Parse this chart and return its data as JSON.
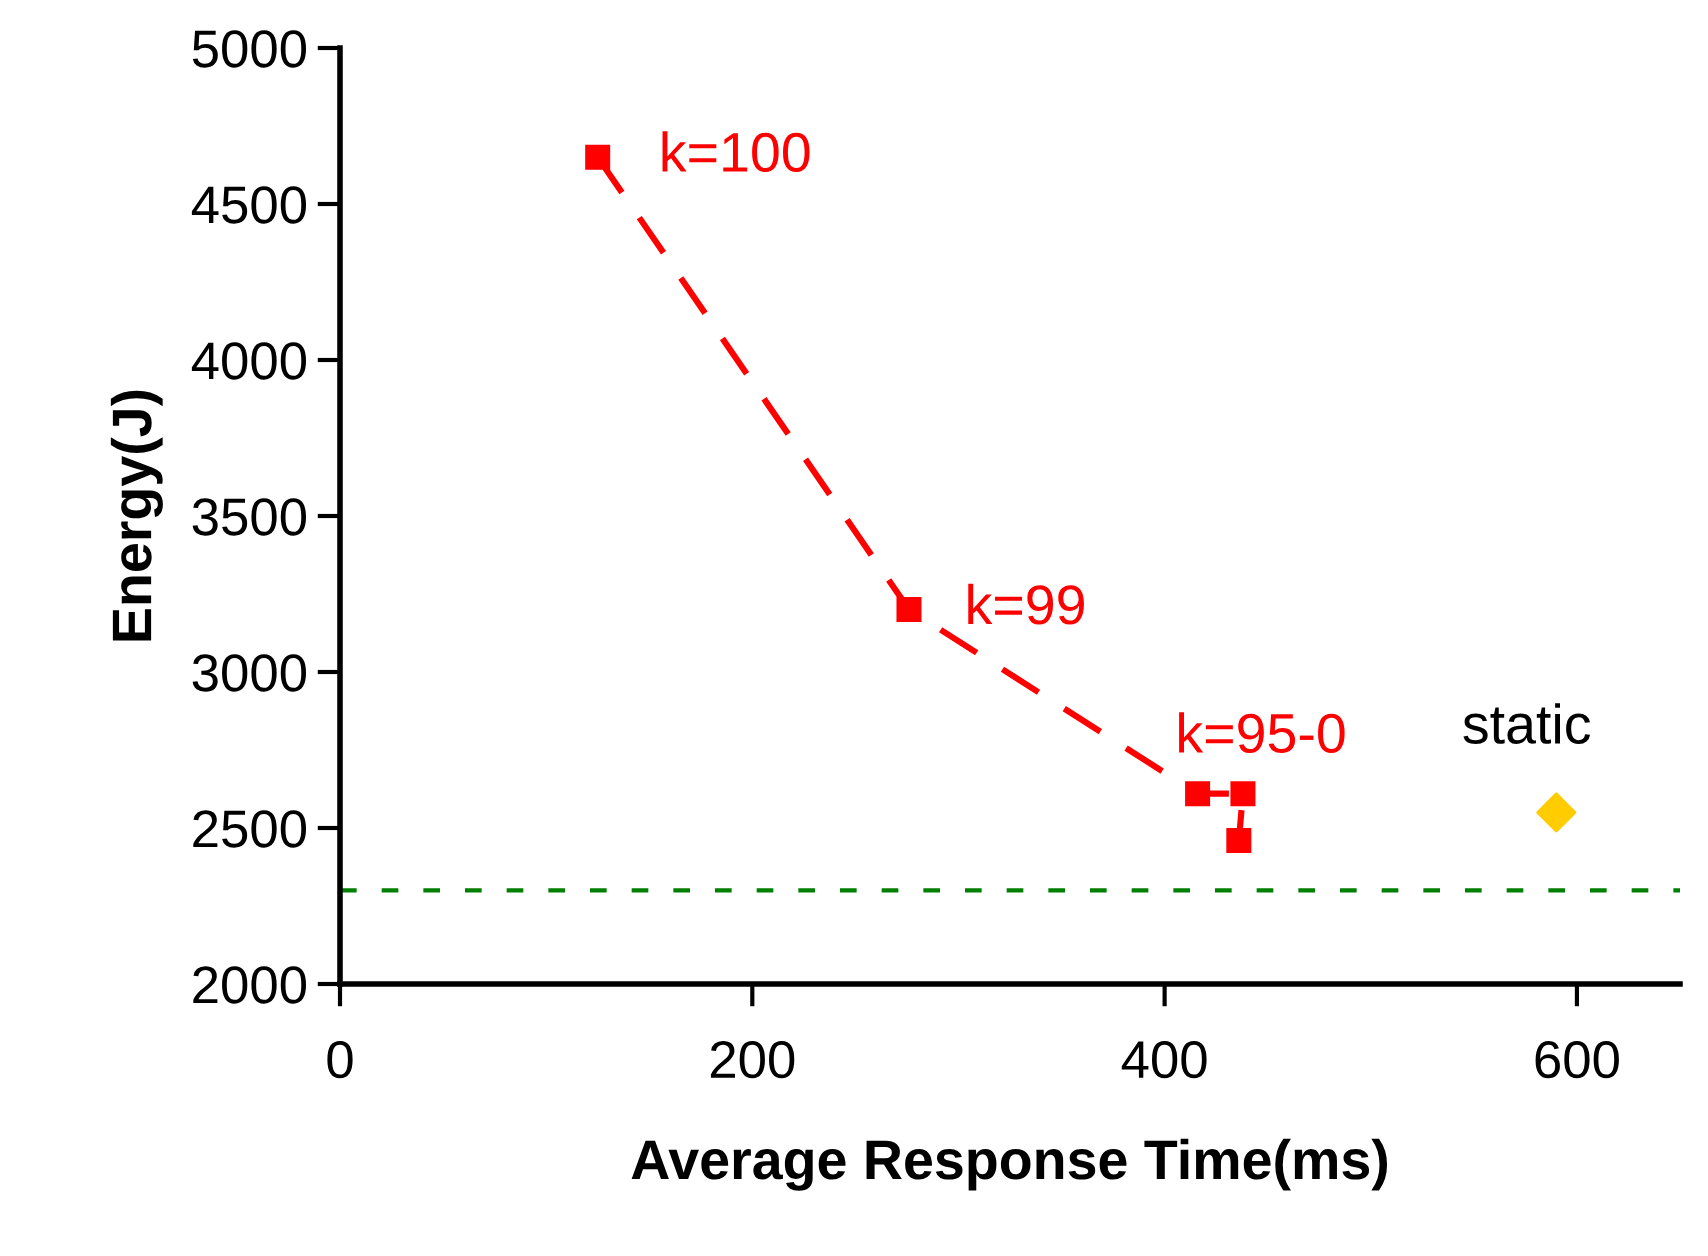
{
  "chart_data": {
    "type": "line",
    "xlabel": "Average Response Time(ms)",
    "ylabel": "Energy(J)",
    "xlim": [
      0,
      650
    ],
    "ylim": [
      2000,
      5000
    ],
    "xticks": [
      0,
      200,
      400,
      600
    ],
    "yticks": [
      2000,
      2500,
      3000,
      3500,
      4000,
      4500,
      5000
    ],
    "grid": false,
    "legend": false,
    "series": [
      {
        "color": "#ff0000",
        "marker": "square",
        "line_style": "dashed",
        "x": [
          125,
          276,
          416,
          438,
          436
        ],
        "values": [
          4650,
          3200,
          2610,
          2610,
          2460
        ]
      },
      {
        "type": "scatter",
        "color": "#ffcc00",
        "marker": "diamond",
        "x": [
          590
        ],
        "values": [
          2550
        ]
      }
    ],
    "ref_lines": [
      {
        "axis": "y",
        "value": 2300,
        "color": "#008000",
        "line_style": "dashed"
      }
    ],
    "annotations": [
      {
        "text": "k=100",
        "x": 125,
        "y": 4650
      },
      {
        "text": "k=99",
        "x": 276,
        "y": 3200
      },
      {
        "text": "k=95-0",
        "x": 416,
        "y": 2610
      },
      {
        "text": "static",
        "x": 590,
        "y": 2550
      }
    ]
  }
}
